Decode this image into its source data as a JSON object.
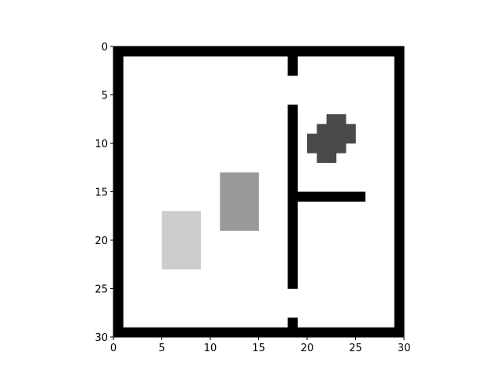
{
  "chart_data": {
    "type": "heatmap",
    "title": "",
    "xlabel": "",
    "ylabel": "",
    "xlim": [
      0,
      30
    ],
    "ylim": [
      30,
      0
    ],
    "x_ticks": [
      "0",
      "5",
      "10",
      "15",
      "20",
      "25",
      "30"
    ],
    "y_ticks": [
      "0",
      "5",
      "10",
      "15",
      "20",
      "25",
      "30"
    ],
    "grid": false,
    "colors": {
      "wall": "#000000",
      "floor": "#ffffff",
      "agent": "#4a4a4a",
      "box_medium": "#999999",
      "box_light": "#cccccc"
    },
    "cells": [
      {
        "kind": "wall",
        "rows": [
          0,
          0
        ],
        "cols": [
          0,
          29
        ]
      },
      {
        "kind": "wall",
        "rows": [
          29,
          29
        ],
        "cols": [
          0,
          29
        ]
      },
      {
        "kind": "wall",
        "rows": [
          0,
          28
        ],
        "cols": [
          0,
          0
        ]
      },
      {
        "kind": "wall",
        "rows": [
          0,
          28
        ],
        "cols": [
          29,
          29
        ]
      },
      {
        "kind": "wall",
        "rows": [
          0,
          2
        ],
        "cols": [
          18,
          18
        ]
      },
      {
        "kind": "wall",
        "rows": [
          6,
          24
        ],
        "cols": [
          18,
          18
        ]
      },
      {
        "kind": "wall",
        "rows": [
          28,
          28
        ],
        "cols": [
          18,
          18
        ]
      },
      {
        "kind": "wall",
        "rows": [
          15,
          15
        ],
        "cols": [
          19,
          25
        ]
      },
      {
        "kind": "box_medium",
        "rows": [
          13,
          18
        ],
        "cols": [
          11,
          14
        ]
      },
      {
        "kind": "box_light",
        "rows": [
          17,
          22
        ],
        "cols": [
          5,
          8
        ]
      },
      {
        "kind": "agent",
        "rows": [
          7,
          7
        ],
        "cols": [
          22,
          23
        ]
      },
      {
        "kind": "agent",
        "rows": [
          8,
          9
        ],
        "cols": [
          21,
          24
        ]
      },
      {
        "kind": "agent",
        "rows": [
          9,
          10
        ],
        "cols": [
          20,
          20
        ]
      },
      {
        "kind": "agent",
        "rows": [
          10,
          10
        ],
        "cols": [
          21,
          23
        ]
      },
      {
        "kind": "agent",
        "rows": [
          11,
          11
        ],
        "cols": [
          21,
          22
        ]
      }
    ]
  }
}
